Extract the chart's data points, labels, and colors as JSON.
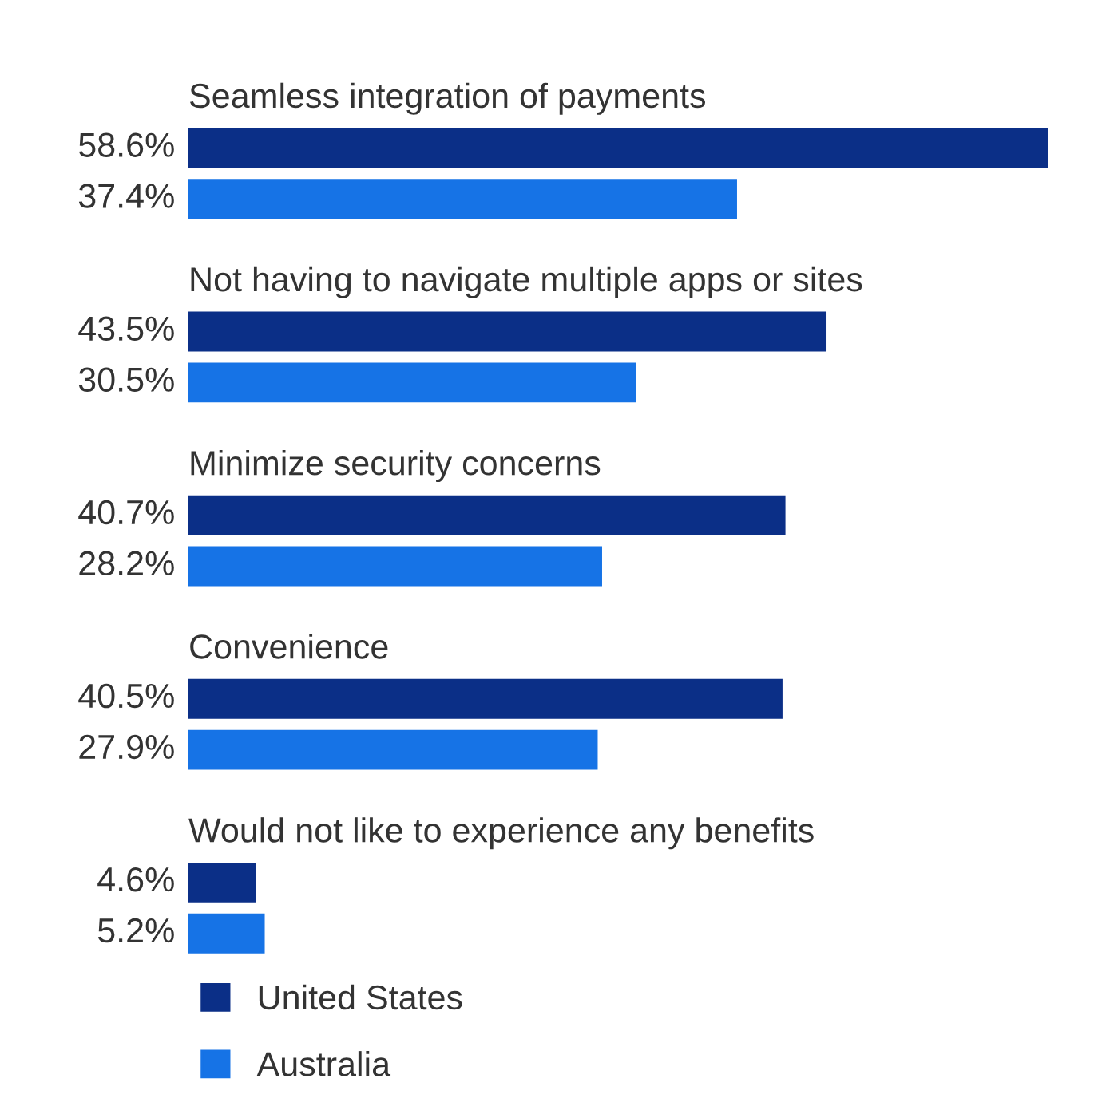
{
  "chart_data": {
    "type": "bar",
    "orientation": "horizontal",
    "categories": [
      "Seamless integration of payments",
      "Not having to navigate multiple apps or sites",
      "Minimize security concerns",
      "Convenience",
      "Would not like to experience any benefits"
    ],
    "series": [
      {
        "name": "United States",
        "color": "#0b2f87",
        "values": [
          58.6,
          43.5,
          40.7,
          40.5,
          4.6
        ],
        "value_labels": [
          "58.6%",
          "43.5%",
          "40.7%",
          "40.5%",
          "4.6%"
        ]
      },
      {
        "name": "Australia",
        "color": "#1673e6",
        "values": [
          37.4,
          30.5,
          28.2,
          27.9,
          5.2
        ],
        "value_labels": [
          "37.4%",
          "30.5%",
          "28.2%",
          "27.9%",
          "5.2%"
        ]
      }
    ],
    "tick_labels": false,
    "legend": "bottom left"
  }
}
